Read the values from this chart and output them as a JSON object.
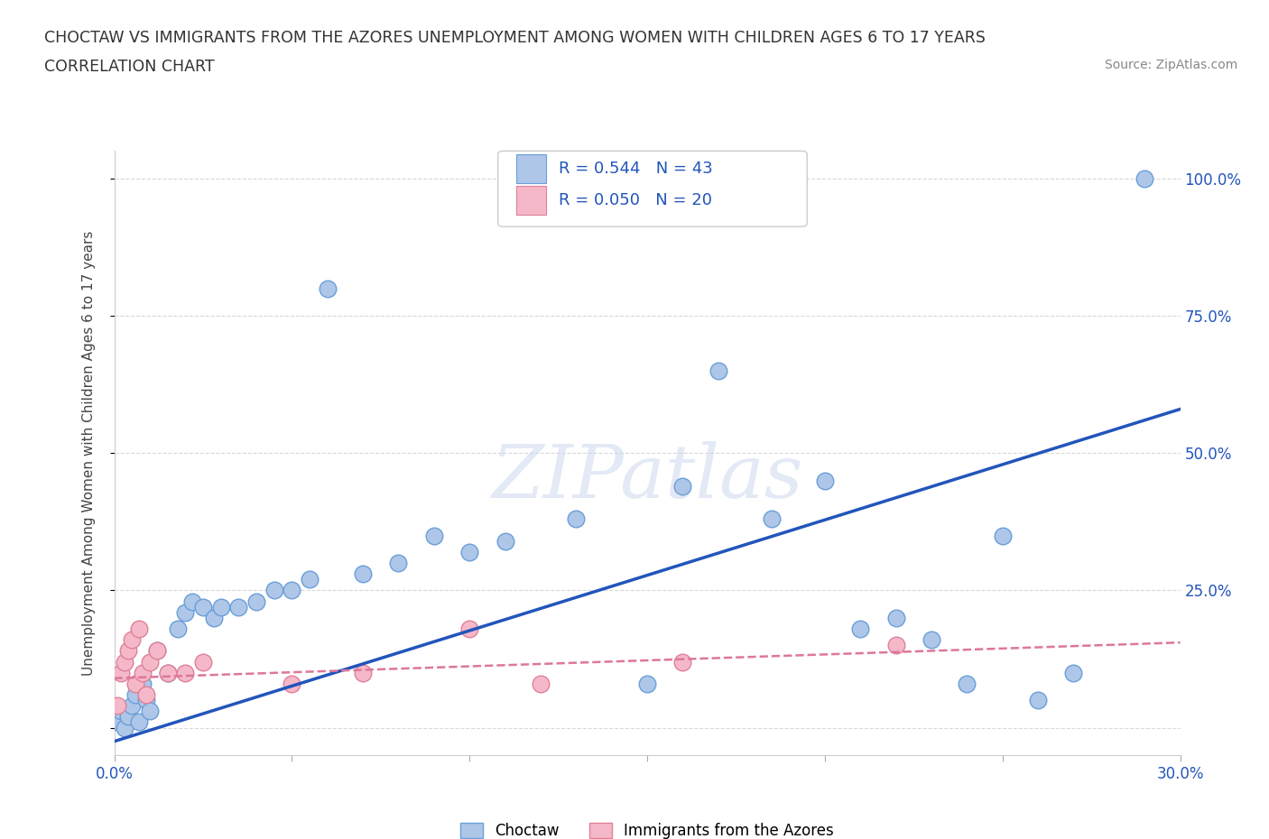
{
  "title_line1": "CHOCTAW VS IMMIGRANTS FROM THE AZORES UNEMPLOYMENT AMONG WOMEN WITH CHILDREN AGES 6 TO 17 YEARS",
  "title_line2": "CORRELATION CHART",
  "source_text": "Source: ZipAtlas.com",
  "ylabel": "Unemployment Among Women with Children Ages 6 to 17 years",
  "xlim": [
    0.0,
    0.3
  ],
  "ylim": [
    -0.05,
    1.05
  ],
  "xticks": [
    0.0,
    0.05,
    0.1,
    0.15,
    0.2,
    0.25,
    0.3
  ],
  "xtick_labels": [
    "0.0%",
    "",
    "",
    "",
    "",
    "",
    "30.0%"
  ],
  "ytick_positions": [
    0.0,
    0.25,
    0.5,
    0.75,
    1.0
  ],
  "ytick_labels": [
    "",
    "25.0%",
    "50.0%",
    "75.0%",
    "100.0%"
  ],
  "watermark": "ZIPatlas",
  "choctaw_color": "#aec6e8",
  "choctaw_edge": "#6a9fd8",
  "azores_color": "#f5b8c8",
  "azores_edge": "#e08098",
  "line_blue": "#2255bb",
  "line_pink": "#dd7799",
  "R_choctaw": 0.544,
  "N_choctaw": 43,
  "R_azores": 0.05,
  "N_azores": 20,
  "choctaw_points": [
    [
      0.001,
      0.01
    ],
    [
      0.002,
      0.03
    ],
    [
      0.003,
      0.0
    ],
    [
      0.004,
      0.02
    ],
    [
      0.005,
      0.04
    ],
    [
      0.006,
      0.06
    ],
    [
      0.007,
      0.01
    ],
    [
      0.008,
      0.08
    ],
    [
      0.009,
      0.05
    ],
    [
      0.01,
      0.03
    ],
    [
      0.012,
      0.14
    ],
    [
      0.015,
      0.1
    ],
    [
      0.018,
      0.18
    ],
    [
      0.02,
      0.21
    ],
    [
      0.022,
      0.23
    ],
    [
      0.025,
      0.22
    ],
    [
      0.028,
      0.2
    ],
    [
      0.03,
      0.22
    ],
    [
      0.035,
      0.22
    ],
    [
      0.04,
      0.23
    ],
    [
      0.045,
      0.25
    ],
    [
      0.05,
      0.25
    ],
    [
      0.055,
      0.27
    ],
    [
      0.06,
      0.8
    ],
    [
      0.07,
      0.28
    ],
    [
      0.08,
      0.3
    ],
    [
      0.09,
      0.35
    ],
    [
      0.1,
      0.32
    ],
    [
      0.11,
      0.34
    ],
    [
      0.13,
      0.38
    ],
    [
      0.15,
      0.08
    ],
    [
      0.16,
      0.44
    ],
    [
      0.17,
      0.65
    ],
    [
      0.185,
      0.38
    ],
    [
      0.2,
      0.45
    ],
    [
      0.21,
      0.18
    ],
    [
      0.22,
      0.2
    ],
    [
      0.23,
      0.16
    ],
    [
      0.24,
      0.08
    ],
    [
      0.25,
      0.35
    ],
    [
      0.26,
      0.05
    ],
    [
      0.27,
      0.1
    ],
    [
      0.29,
      1.0
    ]
  ],
  "azores_points": [
    [
      0.001,
      0.04
    ],
    [
      0.002,
      0.1
    ],
    [
      0.003,
      0.12
    ],
    [
      0.004,
      0.14
    ],
    [
      0.005,
      0.16
    ],
    [
      0.006,
      0.08
    ],
    [
      0.007,
      0.18
    ],
    [
      0.008,
      0.1
    ],
    [
      0.009,
      0.06
    ],
    [
      0.01,
      0.12
    ],
    [
      0.012,
      0.14
    ],
    [
      0.015,
      0.1
    ],
    [
      0.02,
      0.1
    ],
    [
      0.025,
      0.12
    ],
    [
      0.05,
      0.08
    ],
    [
      0.07,
      0.1
    ],
    [
      0.1,
      0.18
    ],
    [
      0.12,
      0.08
    ],
    [
      0.16,
      0.12
    ],
    [
      0.22,
      0.15
    ]
  ],
  "blue_line_x0": 0.0,
  "blue_line_y0": -0.025,
  "blue_line_x1": 0.3,
  "blue_line_y1": 0.58,
  "pink_line_x0": 0.0,
  "pink_line_y0": 0.09,
  "pink_line_x1": 0.3,
  "pink_line_y1": 0.155,
  "background_color": "#ffffff",
  "grid_color": "#d8d8d8",
  "grid_style": "--"
}
